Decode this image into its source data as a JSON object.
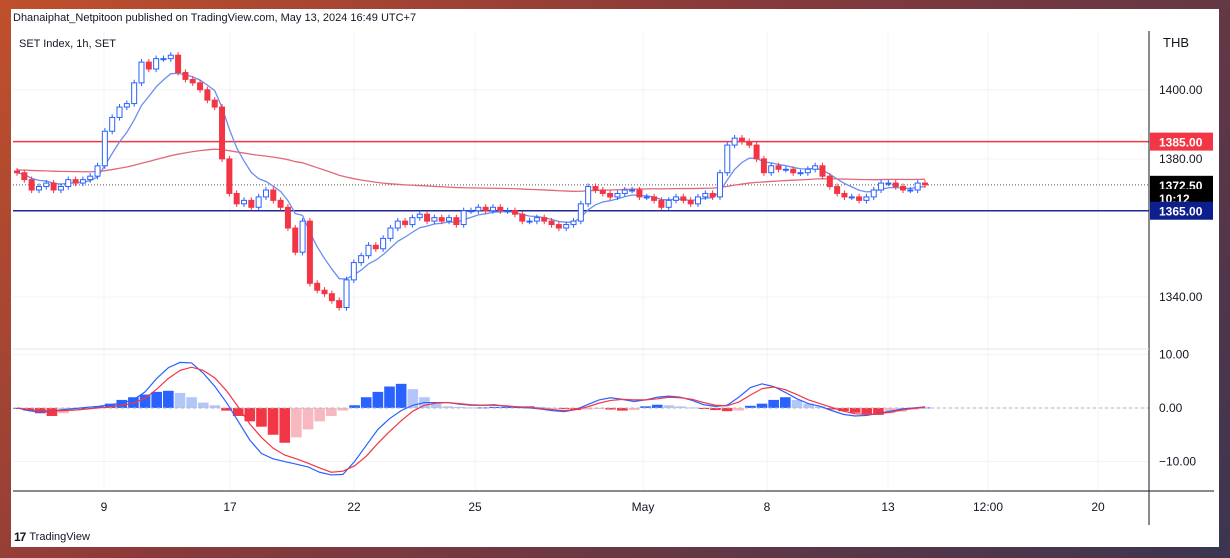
{
  "header": {
    "published_text": "Dhanaiphat_Netpitoon published on TradingView.com, May 13, 2024 16:49 UTC+7"
  },
  "footer": {
    "logo_text": "TradingView",
    "logo_mark": "17"
  },
  "chart_data": [
    {
      "type": "candlestick",
      "title": "SET Index, 1h, SET",
      "currency": "THB",
      "ylim": [
        1325,
        1417
      ],
      "y_ticks": [
        "1400.00",
        "1380.00",
        "1340.00"
      ],
      "x_ticks": [
        "9",
        "17",
        "22",
        "25",
        "May",
        "8",
        "13",
        "12:00",
        "20"
      ],
      "price_labels": [
        {
          "text": "1385.00",
          "value": 1385,
          "color": "#f23645"
        },
        {
          "text": "1372.50",
          "value": 1372.5,
          "color": "#000000"
        },
        {
          "text": "10:12",
          "value": 1368.7,
          "color": "#000000"
        },
        {
          "text": "1365.00",
          "value": 1365,
          "color": "#0d1f8c"
        }
      ],
      "horizontal_lines": [
        {
          "value": 1385,
          "color": "#f23645"
        },
        {
          "value": 1365,
          "color": "#1e2a8f"
        }
      ],
      "last_price": 1372.5,
      "closes": [
        1376,
        1374,
        1371,
        1372,
        1373,
        1371,
        1372,
        1374,
        1373,
        1374,
        1375,
        1378,
        1388,
        1392,
        1395,
        1396,
        1402,
        1408,
        1406,
        1409,
        1409,
        1410,
        1405,
        1403,
        1402,
        1400,
        1397,
        1395,
        1380,
        1370,
        1367,
        1368,
        1366,
        1369,
        1371,
        1368,
        1366,
        1360,
        1353,
        1362,
        1344,
        1342,
        1341,
        1339,
        1337,
        1345,
        1350,
        1352,
        1355,
        1354,
        1357,
        1360,
        1362,
        1361,
        1363,
        1364,
        1362,
        1363,
        1362,
        1363,
        1361,
        1365,
        1365,
        1366,
        1365,
        1366,
        1365,
        1365,
        1364,
        1362,
        1362,
        1363,
        1362,
        1361,
        1360,
        1361,
        1362,
        1367,
        1372,
        1371,
        1370,
        1369,
        1370,
        1371,
        1371,
        1369,
        1369,
        1368,
        1366,
        1368,
        1369,
        1368,
        1367,
        1369,
        1370,
        1369,
        1376,
        1384,
        1386,
        1385,
        1384,
        1380,
        1376,
        1378,
        1377,
        1377,
        1376,
        1376,
        1377,
        1378,
        1375,
        1372,
        1370,
        1369,
        1369,
        1368,
        1369,
        1371,
        1373,
        1373,
        1372,
        1371,
        1371,
        1373,
        1372.5
      ],
      "macd_ylim": [
        -15.5,
        11
      ],
      "macd_ticks": [
        "10.00",
        "0.00",
        "−10.00"
      ],
      "macd_line": [
        0,
        -0.5,
        -0.8,
        -0.6,
        -0.3,
        -0.1,
        0.1,
        0.3,
        0.6,
        0.9,
        1.5,
        3.0,
        5.5,
        7.5,
        8.5,
        8.4,
        6.5,
        4.0,
        1.0,
        -2.5,
        -6,
        -8.5,
        -9.5,
        -10,
        -10.5,
        -11,
        -12,
        -12.5,
        -12.4,
        -10,
        -7,
        -4,
        -2,
        -0.5,
        0.5,
        1,
        1,
        1,
        0.7,
        0.5,
        0.5,
        0.6,
        0.3,
        0.1,
        0,
        -0.2,
        -0.5,
        -0.7,
        -0.3,
        0.6,
        1.5,
        1.9,
        1.6,
        1.2,
        1.5,
        2,
        2.2,
        2,
        1.4,
        0.6,
        0.3,
        0.5,
        2,
        3.8,
        4.5,
        4.0,
        2.9,
        1.7,
        0.8,
        0.3,
        -0.5,
        -1.2,
        -1.5,
        -1.4,
        -1.0,
        -0.6,
        -0.2,
        0,
        0.2
      ],
      "signal_line": [
        0,
        -0.3,
        -0.5,
        -0.6,
        -0.5,
        -0.4,
        -0.2,
        0,
        0.2,
        0.5,
        0.9,
        1.8,
        3.5,
        5.5,
        7.0,
        7.6,
        7.0,
        5.6,
        3.2,
        0.2,
        -3.0,
        -5.5,
        -7.5,
        -8.8,
        -9.5,
        -10.3,
        -11.2,
        -12.0,
        -11.8,
        -10.8,
        -9.0,
        -6.6,
        -4.4,
        -2.4,
        -0.6,
        0.5,
        0.9,
        1.0,
        0.8,
        0.6,
        0.5,
        0.5,
        0.4,
        0.2,
        0.1,
        -0.1,
        -0.3,
        -0.5,
        -0.3,
        0.2,
        0.9,
        1.4,
        1.6,
        1.5,
        1.5,
        1.7,
        2.0,
        1.9,
        1.6,
        1.0,
        0.5,
        0.4,
        1.1,
        2.4,
        3.6,
        3.9,
        3.4,
        2.5,
        1.5,
        0.8,
        0.1,
        -0.6,
        -1.1,
        -1.2,
        -1.1,
        -0.8,
        -0.4,
        -0.1,
        0.1
      ],
      "histogram": [
        0,
        -0.5,
        -1,
        -1.5,
        -1,
        -0.5,
        0,
        0.3,
        0.8,
        1.5,
        2.0,
        2.5,
        3.0,
        3.2,
        2.8,
        2.0,
        1.0,
        0.5,
        -0.5,
        -1.5,
        -2.5,
        -3.5,
        -5.0,
        -6.5,
        -5.5,
        -4.0,
        -2.5,
        -1.5,
        -0.5,
        0.5,
        2.0,
        3.0,
        4.0,
        4.5,
        3.5,
        2.0,
        0.8,
        0.3,
        0.2,
        0.1,
        0.1,
        0.2,
        0.2,
        0.3,
        0.3,
        0.2,
        0,
        -0.2,
        -0.4,
        -0.3,
        -0.2,
        -0.3,
        -0.5,
        -0.4,
        0.3,
        0.6,
        0.5,
        0.3,
        0.1,
        -0.2,
        -0.4,
        -0.6,
        -0.5,
        0.4,
        0.8,
        1.5,
        2.0,
        1.5,
        0.8,
        0.3,
        -0.3,
        -0.6,
        -0.9,
        -1.1,
        -1.3,
        -1.0,
        -0.7,
        -0.3,
        0.1
      ]
    }
  ],
  "colors": {
    "up": "#2962ff",
    "down": "#f23645",
    "ema_fast": "#6b8ff0",
    "ema_slow": "#e06a7a",
    "grid": "#f0f3fa",
    "axis": "#131722"
  }
}
